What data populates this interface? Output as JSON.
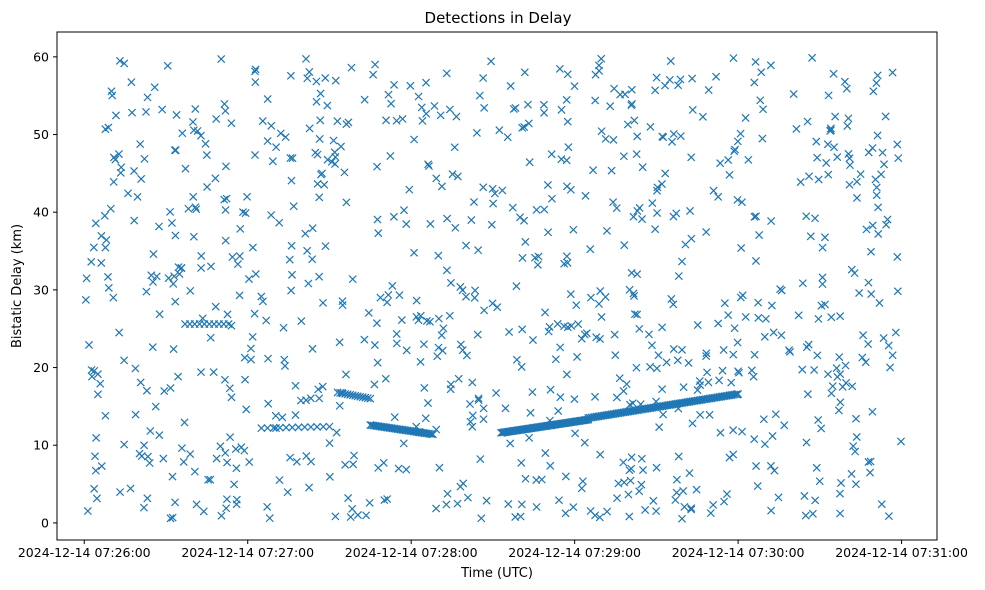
{
  "chart_data": {
    "type": "scatter",
    "title": "Detections in Delay",
    "xlabel": "Time (UTC)",
    "ylabel": "Bistatic Delay (km)",
    "x_ticks": [
      "2024-12-14 07:26:00",
      "2024-12-14 07:27:00",
      "2024-12-14 07:28:00",
      "2024-12-14 07:29:00",
      "2024-12-14 07:30:00",
      "2024-12-14 07:31:00"
    ],
    "y_ticks": [
      "0",
      "10",
      "20",
      "30",
      "40",
      "50",
      "60"
    ],
    "xlim": [
      "2024-12-14 07:25:50",
      "2024-12-14 07:31:13"
    ],
    "ylim": [
      -2.2,
      63.2
    ],
    "grid": false,
    "marker": "x",
    "color": "#1f77b4",
    "noise_detections": {
      "count": 900,
      "time_range": [
        "2024-12-14 07:26:00",
        "2024-12-14 07:31:00"
      ],
      "delay_range_km": [
        0.5,
        60
      ]
    },
    "tracks": [
      {
        "start": "2024-12-14 07:27:05",
        "end": "2024-12-14 07:27:30",
        "points": 12,
        "delay_start_km": 12.2,
        "delay_end_km": 12.4
      },
      {
        "start": "2024-12-14 07:26:37",
        "end": "2024-12-14 07:26:53",
        "points": 10,
        "delay_start_km": 25.6,
        "delay_end_km": 25.6
      },
      {
        "start": "2024-12-14 07:27:33",
        "end": "2024-12-14 07:27:45",
        "points": 14,
        "delay_start_km": 16.8,
        "delay_end_km": 16.0
      },
      {
        "start": "2024-12-14 07:27:45",
        "end": "2024-12-14 07:28:08",
        "points": 40,
        "delay_start_km": 12.6,
        "delay_end_km": 11.4
      },
      {
        "start": "2024-12-14 07:28:33",
        "end": "2024-12-14 07:29:05",
        "points": 70,
        "delay_start_km": 11.6,
        "delay_end_km": 13.3
      },
      {
        "start": "2024-12-14 07:29:05",
        "end": "2024-12-14 07:30:00",
        "points": 90,
        "delay_start_km": 13.5,
        "delay_end_km": 16.6
      }
    ]
  }
}
